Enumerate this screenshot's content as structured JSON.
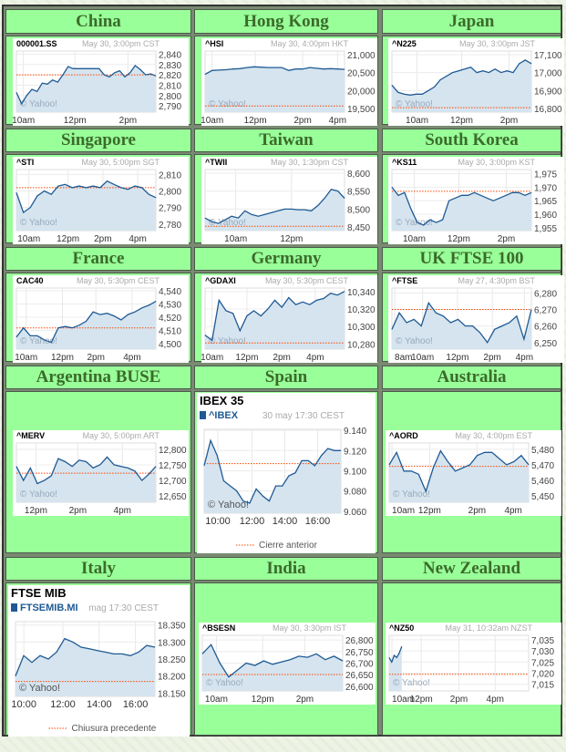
{
  "chart_data": [
    {
      "type": "line",
      "region": "China",
      "ticker": "000001.SS",
      "date": "May 30, 3:00pm CST",
      "ylim": [
        2784,
        2843
      ],
      "yticks": [
        "2,840",
        "2,830",
        "2,820",
        "2,810",
        "2,800",
        "2,790"
      ],
      "ytick_values": [
        2840,
        2830,
        2820,
        2810,
        2800,
        2790
      ],
      "xticks": [
        "10am",
        "12pm",
        "2pm"
      ],
      "prev_close": 2820,
      "values": [
        2803,
        2792,
        2800,
        2806,
        2804,
        2812,
        2811,
        2815,
        2813,
        2820,
        2828,
        2826,
        2826,
        2826,
        2826,
        2826,
        2826,
        2820,
        2818,
        2822,
        2824,
        2818,
        2822,
        2829,
        2825,
        2820,
        2821,
        2819
      ],
      "watermark": "© Yahoo!"
    },
    {
      "type": "line",
      "region": "Hong Kong",
      "ticker": "^HSI",
      "date": "May 30, 4:00pm HKT",
      "ylim": [
        19400,
        21100
      ],
      "yticks": [
        "21,000",
        "20,500",
        "20,000",
        "19,500"
      ],
      "ytick_values": [
        21000,
        20500,
        20000,
        19500
      ],
      "xticks": [
        "10am",
        "12pm",
        "2pm",
        "4pm"
      ],
      "prev_close": 19570,
      "values": [
        20450,
        20560,
        20570,
        20580,
        20600,
        20610,
        20640,
        20660,
        20650,
        20640,
        20640,
        20640,
        20560,
        20600,
        20600,
        20640,
        20620,
        20600,
        20610,
        20600,
        20590
      ],
      "watermark": "© Yahoo!"
    },
    {
      "type": "line",
      "region": "Japan",
      "ticker": "^N225",
      "date": "May 30, 3:00pm JST",
      "ylim": [
        16780,
        17120
      ],
      "yticks": [
        "17,100",
        "17,000",
        "16,900",
        "16,800"
      ],
      "ytick_values": [
        17100,
        17000,
        16900,
        16800
      ],
      "xticks": [
        "10am",
        "12pm",
        "2pm"
      ],
      "prev_close": 16805,
      "values": [
        16930,
        16890,
        16880,
        16875,
        16880,
        16880,
        16900,
        16920,
        16960,
        16980,
        17000,
        17010,
        17020,
        17030,
        17000,
        17010,
        17000,
        17020,
        17000,
        17010,
        17000,
        17050,
        17070,
        17050
      ],
      "watermark": "© Yahoo!"
    },
    {
      "type": "line",
      "region": "Singapore",
      "ticker": "^STI",
      "date": "May 30, 5:00pm SGT",
      "ylim": [
        2776,
        2813
      ],
      "yticks": [
        "2,810",
        "2,800",
        "2,790",
        "2,780"
      ],
      "ytick_values": [
        2810,
        2800,
        2790,
        2780
      ],
      "xticks": [
        "10am",
        "12pm",
        "2pm",
        "4pm"
      ],
      "prev_close": 2802,
      "values": [
        2799,
        2787,
        2790,
        2797,
        2800,
        2798,
        2803,
        2804,
        2802,
        2803,
        2802,
        2803,
        2802,
        2806,
        2804,
        2802,
        2801,
        2803,
        2802,
        2798,
        2796
      ],
      "watermark": "© Yahoo!"
    },
    {
      "type": "line",
      "region": "Taiwan",
      "ticker": "^TWII",
      "date": "May 30, 1:30pm CST",
      "ylim": [
        8440,
        8610
      ],
      "yticks": [
        "8,600",
        "8,550",
        "8,500",
        "8,450"
      ],
      "ytick_values": [
        8600,
        8550,
        8500,
        8450
      ],
      "xticks": [
        "10am",
        "12pm"
      ],
      "prev_close": 8452,
      "values": [
        8475,
        8465,
        8460,
        8470,
        8480,
        8475,
        8495,
        8485,
        8480,
        8485,
        8490,
        8495,
        8500,
        8500,
        8498,
        8498,
        8495,
        8510,
        8530,
        8555,
        8550,
        8530
      ],
      "watermark": "© Yahoo!"
    },
    {
      "type": "line",
      "region": "South Korea",
      "ticker": "^KS11",
      "date": "May 30, 3:00pm KST",
      "ylim": [
        1954,
        1976.5
      ],
      "yticks": [
        "1,975",
        "1,970",
        "1,965",
        "1,960",
        "1,955"
      ],
      "ytick_values": [
        1975,
        1970,
        1965,
        1960,
        1955
      ],
      "xticks": [
        "10am",
        "12pm",
        "2pm"
      ],
      "prev_close": 1968.5,
      "values": [
        1970,
        1967,
        1968,
        1962,
        1957,
        1956,
        1958,
        1957,
        1958,
        1965,
        1966,
        1967,
        1967,
        1968,
        1967,
        1966,
        1965,
        1966,
        1967,
        1968,
        1968,
        1967,
        1968
      ],
      "watermark": "© Yahoo!"
    },
    {
      "type": "line",
      "region": "France",
      "ticker": "CAC40",
      "date": "May 30, 5:30pm CEST",
      "ylim": [
        4496,
        4542
      ],
      "yticks": [
        "4,540",
        "4,530",
        "4,520",
        "4,510",
        "4,500"
      ],
      "ytick_values": [
        4540,
        4530,
        4520,
        4510,
        4500
      ],
      "xticks": [
        "10am",
        "12pm",
        "2pm",
        "4pm"
      ],
      "prev_close": 4512,
      "values": [
        4505,
        4512,
        4506,
        4506,
        4503,
        4501,
        4512,
        4513,
        4512,
        4514,
        4517,
        4524,
        4522,
        4523,
        4521,
        4518,
        4522,
        4524,
        4527,
        4529,
        4532
      ],
      "watermark": "© Yahoo!"
    },
    {
      "type": "line",
      "region": "Germany",
      "ticker": "^GDAXI",
      "date": "May 30, 5:30pm CEST",
      "ylim": [
        10274,
        10344
      ],
      "yticks": [
        "10,340",
        "10,320",
        "10,300",
        "10,280"
      ],
      "ytick_values": [
        10340,
        10320,
        10300,
        10280
      ],
      "xticks": [
        "10am",
        "12pm",
        "2pm",
        "4pm"
      ],
      "prev_close": 10281,
      "values": [
        10290,
        10284,
        10330,
        10318,
        10315,
        10295,
        10312,
        10318,
        10312,
        10320,
        10330,
        10322,
        10333,
        10325,
        10328,
        10325,
        10330,
        10332,
        10338,
        10336,
        10340
      ],
      "watermark": "© Yahoo!"
    },
    {
      "type": "line",
      "region": "UK FTSE 100",
      "ticker": "^FTSE",
      "date": "May 27, 4:30pm BST",
      "ylim": [
        6246,
        6283
      ],
      "yticks": [
        "6,280",
        "6,270",
        "6,260",
        "6,250"
      ],
      "ytick_values": [
        6280,
        6270,
        6260,
        6250
      ],
      "xticks": [
        "8am",
        "10am",
        "12pm",
        "2pm",
        "4pm"
      ],
      "prev_close": 6270,
      "values": [
        6258,
        6268,
        6262,
        6264,
        6260,
        6274,
        6268,
        6266,
        6262,
        6264,
        6260,
        6260,
        6256,
        6250,
        6258,
        6260,
        6262,
        6266,
        6252,
        6270
      ],
      "watermark": "© Yahoo!"
    },
    {
      "type": "line",
      "region": "Argentina BUSE",
      "ticker": "^MERV",
      "date": "May 30, 5:00pm  ART",
      "ylim": [
        12630,
        12820
      ],
      "yticks": [
        "12,800",
        "12,750",
        "12,700",
        "12,650"
      ],
      "ytick_values": [
        12800,
        12750,
        12700,
        12650
      ],
      "xticks": [
        "12pm",
        "2pm",
        "4pm"
      ],
      "prev_close": 12723,
      "values": [
        12745,
        12700,
        12740,
        12690,
        12700,
        12715,
        12770,
        12760,
        12745,
        12765,
        12760,
        12740,
        12750,
        12775,
        12750,
        12745,
        12740,
        12730,
        12700,
        12720,
        12745
      ],
      "watermark": "© Yahoo!"
    },
    {
      "type": "line",
      "region": "Spain",
      "title": "IBEX 35",
      "ticker": "^IBEX",
      "date": "30 may 17:30 CEST",
      "ylim": [
        9.058,
        9.141
      ],
      "yticks": [
        "9.140",
        "9.120",
        "9.100",
        "9.080",
        "9.060"
      ],
      "ytick_values": [
        9.14,
        9.12,
        9.1,
        9.08,
        9.06
      ],
      "xticks": [
        "10:00",
        "12:00",
        "14:00",
        "16:00"
      ],
      "prev_close": 9.107,
      "legend": "Cierre anterior",
      "values": [
        9.105,
        9.13,
        9.115,
        9.09,
        9.085,
        9.08,
        9.07,
        9.068,
        9.082,
        9.075,
        9.07,
        9.085,
        9.085,
        9.095,
        9.098,
        9.11,
        9.11,
        9.105,
        9.115,
        9.122,
        9.12,
        9.12
      ],
      "watermark": "© Yahoo!"
    },
    {
      "type": "line",
      "region": "Australia",
      "ticker": "^AORD",
      "date": "May 30, 4:00pm EST",
      "ylim": [
        5446,
        5484
      ],
      "yticks": [
        "5,480",
        "5,470",
        "5,460",
        "5,450"
      ],
      "ytick_values": [
        5480,
        5470,
        5460,
        5450
      ],
      "xticks": [
        "10am",
        "12pm",
        "2pm",
        "4pm"
      ],
      "prev_close": 5469,
      "values": [
        5470,
        5478,
        5466,
        5466,
        5464,
        5453,
        5468,
        5479,
        5472,
        5466,
        5468,
        5470,
        5476,
        5478,
        5478,
        5474,
        5470,
        5472,
        5476,
        5470
      ],
      "watermark": "© Yahoo!"
    },
    {
      "type": "line",
      "region": "Italy",
      "title": "FTSE MIB",
      "ticker": "FTSEMIB.MI",
      "date": "mag 17:30 CEST",
      "ylim": [
        18140,
        18360
      ],
      "yticks": [
        "18.350",
        "18.300",
        "18.250",
        "18.200",
        "18.150"
      ],
      "ytick_values": [
        18350,
        18300,
        18250,
        18200,
        18150
      ],
      "xticks": [
        "10:00",
        "12:00",
        "14:00",
        "16:00"
      ],
      "prev_close": 18184,
      "legend": "Chiusura precedente",
      "values": [
        18200,
        18260,
        18240,
        18260,
        18250,
        18270,
        18310,
        18300,
        18285,
        18280,
        18275,
        18270,
        18265,
        18265,
        18260,
        18270,
        18290,
        18285
      ],
      "watermark": "© Yahoo!"
    },
    {
      "type": "line",
      "region": "India",
      "ticker": "^BSESN",
      "date": "May 30, 3:30pm IST",
      "ylim": [
        26580,
        26820
      ],
      "yticks": [
        "26,800",
        "26,750",
        "26,700",
        "26,650",
        "26,600"
      ],
      "ytick_values": [
        26800,
        26750,
        26700,
        26650,
        26600
      ],
      "xticks": [
        "10am",
        "12pm",
        "2pm"
      ],
      "prev_close": 26651,
      "values": [
        26740,
        26780,
        26700,
        26640,
        26670,
        26700,
        26690,
        26710,
        26695,
        26705,
        26715,
        26730,
        26725,
        26740,
        26715,
        26730,
        26710
      ],
      "watermark": "© Yahoo!"
    },
    {
      "type": "line",
      "region": "New Zealand",
      "ticker": "^NZ50",
      "date": "May 31, 10:32am NZST",
      "ylim": [
        7012,
        7037
      ],
      "yticks": [
        "7,035",
        "7,030",
        "7,025",
        "7,020",
        "7,015"
      ],
      "ytick_values": [
        7035,
        7030,
        7025,
        7020,
        7015
      ],
      "xticks": [
        "10am",
        "12pm",
        "2pm",
        "4pm"
      ],
      "prev_close": 7019.5,
      "session_fraction_elapsed": 0.09,
      "values": [
        7027,
        7025,
        7028,
        7027,
        7029,
        7032
      ],
      "watermark": "© Yahoo!"
    }
  ],
  "colors": {
    "line": "#1f5a94",
    "fill": "#d5e4ef",
    "prev_close": "#ff4400",
    "cell": "#99ff99",
    "title": "#3b6b2b"
  }
}
